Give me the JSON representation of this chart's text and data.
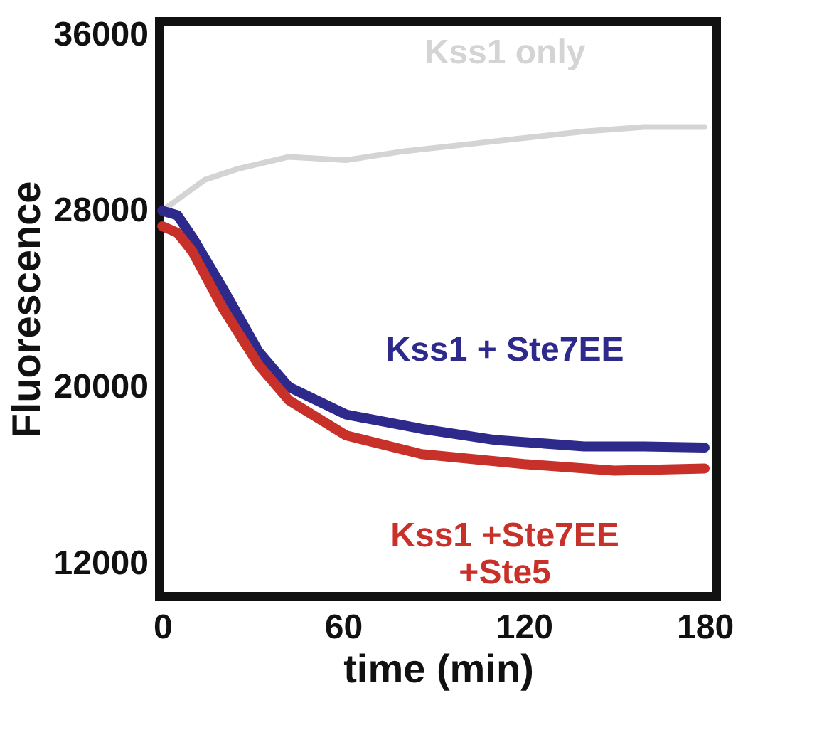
{
  "chart_data": {
    "type": "line",
    "xlabel": "time (min)",
    "ylabel": "Fluorescence",
    "xlim": [
      -1,
      184
    ],
    "ylim": [
      10500,
      36600
    ],
    "xticks": [
      0,
      60,
      120,
      180
    ],
    "yticks": [
      12000,
      20000,
      28000,
      36000
    ],
    "grid": false,
    "marker": "none",
    "line_style": "solid",
    "series": [
      {
        "name": "Kss1 only",
        "color": "#d4d4d4",
        "x": [
          0,
          5,
          14,
          25,
          42,
          61,
          80,
          100,
          120,
          140,
          160,
          180
        ],
        "values": [
          28000,
          28500,
          29400,
          29900,
          30450,
          30300,
          30700,
          31000,
          31300,
          31600,
          31800,
          31800
        ]
      },
      {
        "name": "Kss1 + Ste7EE",
        "color": "#2e2a8c",
        "x": [
          0,
          5,
          10,
          20,
          32,
          42,
          61,
          86,
          110,
          140,
          160,
          180
        ],
        "values": [
          28000,
          27800,
          26800,
          24500,
          21600,
          20000,
          18750,
          18100,
          17600,
          17300,
          17300,
          17250
        ]
      },
      {
        "name": "Kss1 +Ste7EE\n+Ste5",
        "color": "#c8302a",
        "x": [
          0,
          5,
          10,
          20,
          32,
          42,
          61,
          86,
          120,
          150,
          180
        ],
        "values": [
          27300,
          27000,
          26150,
          23600,
          21000,
          19400,
          17800,
          16950,
          16500,
          16200,
          16300
        ]
      }
    ]
  }
}
